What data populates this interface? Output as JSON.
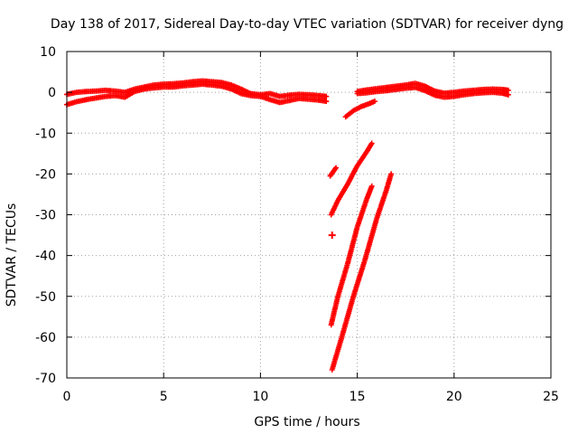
{
  "chart_data": {
    "type": "scatter",
    "title": "Day 138 of 2017, Sidereal Day-to-day VTEC variation (SDTVAR) for receiver dyng",
    "xlabel": "GPS time / hours",
    "ylabel": "SDTVAR / TECUs",
    "xlim": [
      0,
      25
    ],
    "ylim": [
      -70,
      10
    ],
    "xticks": [
      0,
      5,
      10,
      15,
      20,
      25
    ],
    "yticks": [
      10,
      0,
      -10,
      -20,
      -30,
      -40,
      -50,
      -60,
      -70
    ],
    "grid": true,
    "color": "#ff0000",
    "series": [
      {
        "name": "main-band-upper",
        "x": [
          0.0,
          0.5,
          1.0,
          1.5,
          2.0,
          2.5,
          3.0,
          3.5,
          4.0,
          4.5,
          5.0,
          5.5,
          6.0,
          6.5,
          7.0,
          7.5,
          8.0,
          8.5,
          9.0,
          9.5,
          10.0,
          10.5,
          11.0,
          11.5,
          12.0,
          12.5,
          13.0,
          13.4
        ],
        "y": [
          -0.5,
          0.0,
          0.2,
          0.3,
          0.5,
          0.3,
          0.0,
          0.8,
          1.3,
          1.8,
          2.0,
          2.1,
          2.3,
          2.6,
          2.8,
          2.6,
          2.4,
          1.8,
          0.8,
          -0.3,
          -0.6,
          -0.3,
          -1.0,
          -0.7,
          -0.5,
          -0.6,
          -0.8,
          -1.0
        ]
      },
      {
        "name": "main-band-lower",
        "x": [
          0.0,
          0.5,
          1.0,
          1.5,
          2.0,
          2.5,
          3.0,
          3.5,
          4.0,
          4.5,
          5.0,
          5.5,
          6.0,
          6.5,
          7.0,
          7.5,
          8.0,
          8.5,
          9.0,
          9.5,
          10.0,
          10.5,
          11.0,
          11.5,
          12.0,
          12.5,
          13.0,
          13.4
        ],
        "y": [
          -3.0,
          -2.3,
          -1.8,
          -1.4,
          -1.0,
          -0.8,
          -1.2,
          0.2,
          0.8,
          1.1,
          1.3,
          1.3,
          1.6,
          1.8,
          2.0,
          1.8,
          1.5,
          0.8,
          -0.3,
          -0.8,
          -1.0,
          -1.8,
          -2.5,
          -2.0,
          -1.5,
          -1.7,
          -1.9,
          -2.2
        ]
      },
      {
        "name": "branch-to-recovery",
        "x": [
          14.4,
          14.8,
          15.2,
          15.6,
          15.9
        ],
        "y": [
          -6.0,
          -4.5,
          -3.5,
          -2.8,
          -2.2
        ]
      },
      {
        "name": "recovery-band-upper",
        "x": [
          15.0,
          15.5,
          16.0,
          16.5,
          17.0,
          17.5,
          18.0,
          18.5,
          19.0,
          19.5,
          20.0,
          20.5,
          21.0,
          21.5,
          22.0,
          22.5,
          22.8
        ],
        "y": [
          0.2,
          0.6,
          0.9,
          1.2,
          1.5,
          1.8,
          2.2,
          1.5,
          0.3,
          -0.2,
          0.0,
          0.3,
          0.5,
          0.7,
          0.8,
          0.7,
          0.5
        ]
      },
      {
        "name": "recovery-band-lower",
        "x": [
          15.0,
          15.5,
          16.0,
          16.5,
          17.0,
          17.5,
          18.0,
          18.5,
          19.0,
          19.5,
          20.0,
          20.5,
          21.0,
          21.5,
          22.0,
          22.5,
          22.8
        ],
        "y": [
          -0.3,
          -0.1,
          0.2,
          0.4,
          0.7,
          1.0,
          1.2,
          0.4,
          -0.7,
          -1.2,
          -1.0,
          -0.6,
          -0.3,
          -0.1,
          0.0,
          -0.2,
          -0.6
        ]
      },
      {
        "name": "small-segment",
        "x": [
          13.6,
          13.75,
          13.9
        ],
        "y": [
          -20.5,
          -19.5,
          -18.5
        ]
      },
      {
        "name": "upper-drop",
        "x": [
          13.65,
          14.0,
          14.5,
          15.0,
          15.5,
          15.75
        ],
        "y": [
          -30.0,
          -26.5,
          -22.5,
          -18.0,
          -14.5,
          -12.5
        ]
      },
      {
        "name": "middle-drop",
        "x": [
          13.65,
          14.0,
          14.5,
          15.0,
          15.5,
          15.75
        ],
        "y": [
          -57.0,
          -50.0,
          -42.0,
          -33.0,
          -26.0,
          -23.0
        ]
      },
      {
        "name": "lower-drop",
        "x": [
          13.7,
          14.2,
          14.8,
          15.4,
          16.0,
          16.5,
          16.75
        ],
        "y": [
          -68.0,
          -60.0,
          -50.0,
          -41.0,
          -31.0,
          -24.0,
          -20.0
        ]
      },
      {
        "name": "isolated-point",
        "x": [
          13.7
        ],
        "y": [
          -35.0
        ]
      }
    ]
  }
}
